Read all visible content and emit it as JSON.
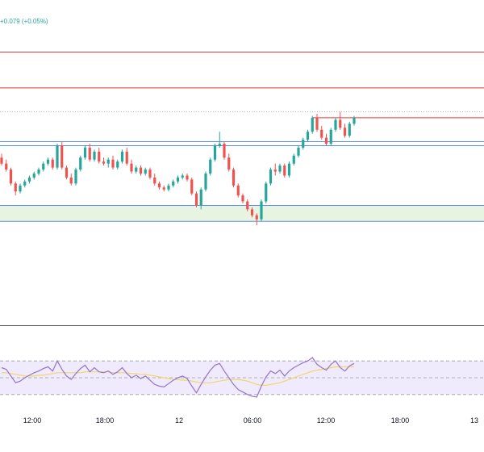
{
  "header": {
    "price_change": "+0.079 (+0.05%)"
  },
  "colors": {
    "up": "#26a69a",
    "down": "#ef5350",
    "resistance_line": "#e53935",
    "support_line": "#5b8def",
    "demand_zone_fill": "#e6f4e1",
    "rsi_line": "#9575cd",
    "rsi_ma_line": "#f5d569",
    "rsi_band_fill": "#efeafc"
  },
  "time_axis": {
    "labels": [
      "12:00",
      "18:00",
      "12",
      "06:00",
      "12:00",
      "18:00",
      "13"
    ]
  },
  "rsi_panel": {
    "upper_level": 70,
    "lower_level": 30
  },
  "chart_data": {
    "type": "candlestick",
    "title": "",
    "price_change": "+0.079 (+0.05%)",
    "x_tick_labels": [
      "12:00",
      "18:00",
      "12",
      "06:00",
      "12:00",
      "18:00",
      "13"
    ],
    "horizontal_levels": [
      {
        "kind": "resistance",
        "color": "#e53935",
        "value": 171.6
      },
      {
        "kind": "resistance",
        "color": "#e53935",
        "value": 169.8
      },
      {
        "kind": "support",
        "color": "#5b8def",
        "value": 167.1
      },
      {
        "kind": "support",
        "color": "#5b8def",
        "value": 166.9
      },
      {
        "kind": "support-zone",
        "color": "#5b8def",
        "range": [
          163.1,
          163.9
        ]
      }
    ],
    "candles": [
      [
        166.3,
        166.5,
        165.9,
        166.0
      ],
      [
        166.0,
        166.2,
        165.6,
        165.7
      ],
      [
        165.7,
        165.8,
        164.9,
        165.0
      ],
      [
        165.0,
        165.1,
        164.4,
        164.6
      ],
      [
        164.6,
        165.0,
        164.5,
        164.9
      ],
      [
        164.9,
        165.2,
        164.8,
        165.1
      ],
      [
        165.1,
        165.4,
        165.0,
        165.3
      ],
      [
        165.3,
        165.6,
        165.2,
        165.5
      ],
      [
        165.5,
        165.8,
        165.4,
        165.7
      ],
      [
        165.7,
        166.1,
        165.6,
        166.0
      ],
      [
        166.0,
        166.3,
        165.9,
        166.2
      ],
      [
        166.2,
        166.3,
        165.7,
        165.8
      ],
      [
        165.8,
        167.0,
        165.7,
        166.9
      ],
      [
        166.9,
        167.1,
        165.7,
        165.8
      ],
      [
        165.8,
        165.9,
        165.2,
        165.3
      ],
      [
        165.3,
        165.5,
        164.9,
        165.0
      ],
      [
        165.0,
        165.8,
        164.9,
        165.7
      ],
      [
        165.7,
        166.4,
        165.6,
        166.3
      ],
      [
        166.3,
        166.9,
        166.2,
        166.8
      ],
      [
        166.8,
        167.0,
        166.1,
        166.2
      ],
      [
        166.2,
        166.7,
        166.1,
        166.6
      ],
      [
        166.6,
        166.8,
        166.0,
        166.1
      ],
      [
        166.1,
        166.3,
        165.9,
        166.0
      ],
      [
        166.0,
        166.3,
        165.8,
        166.2
      ],
      [
        166.2,
        166.4,
        165.7,
        165.8
      ],
      [
        165.8,
        166.2,
        165.7,
        166.1
      ],
      [
        166.1,
        166.7,
        166.0,
        166.6
      ],
      [
        166.6,
        166.8,
        165.9,
        166.0
      ],
      [
        166.0,
        166.2,
        165.5,
        165.6
      ],
      [
        165.6,
        165.9,
        165.5,
        165.8
      ],
      [
        165.8,
        165.9,
        165.4,
        165.5
      ],
      [
        165.5,
        165.8,
        165.4,
        165.7
      ],
      [
        165.7,
        165.8,
        165.2,
        165.3
      ],
      [
        165.3,
        165.5,
        164.9,
        165.0
      ],
      [
        165.0,
        165.1,
        164.7,
        164.8
      ],
      [
        164.8,
        164.9,
        164.6,
        164.7
      ],
      [
        164.7,
        165.0,
        164.6,
        164.9
      ],
      [
        164.9,
        165.2,
        164.8,
        165.1
      ],
      [
        165.1,
        165.4,
        165.0,
        165.3
      ],
      [
        165.3,
        165.5,
        165.2,
        165.4
      ],
      [
        165.4,
        165.5,
        165.1,
        165.2
      ],
      [
        165.2,
        165.3,
        164.4,
        164.5
      ],
      [
        164.5,
        164.6,
        163.8,
        163.9
      ],
      [
        163.9,
        164.8,
        163.7,
        164.7
      ],
      [
        164.7,
        165.6,
        164.6,
        165.5
      ],
      [
        165.5,
        166.3,
        165.4,
        166.2
      ],
      [
        166.2,
        167.0,
        166.1,
        166.9
      ],
      [
        166.9,
        167.6,
        166.8,
        167.0
      ],
      [
        167.0,
        167.1,
        166.2,
        166.3
      ],
      [
        166.3,
        166.5,
        165.6,
        165.7
      ],
      [
        165.7,
        165.8,
        164.8,
        164.9
      ],
      [
        164.9,
        165.0,
        164.3,
        164.4
      ],
      [
        164.4,
        164.5,
        164.0,
        164.1
      ],
      [
        164.1,
        164.2,
        163.6,
        163.7
      ],
      [
        163.7,
        163.8,
        163.3,
        163.4
      ],
      [
        163.4,
        163.5,
        162.9,
        163.2
      ],
      [
        163.2,
        164.2,
        163.1,
        164.1
      ],
      [
        164.1,
        165.1,
        164.0,
        165.0
      ],
      [
        165.0,
        165.8,
        164.9,
        165.7
      ],
      [
        165.7,
        166.0,
        165.4,
        165.6
      ],
      [
        165.6,
        166.0,
        165.5,
        165.9
      ],
      [
        165.9,
        166.0,
        165.3,
        165.4
      ],
      [
        165.4,
        166.1,
        165.3,
        166.0
      ],
      [
        166.0,
        166.5,
        165.9,
        166.4
      ],
      [
        166.4,
        166.9,
        166.3,
        166.8
      ],
      [
        166.8,
        167.3,
        166.7,
        167.2
      ],
      [
        167.2,
        167.7,
        167.1,
        167.6
      ],
      [
        167.6,
        168.4,
        167.5,
        168.3
      ],
      [
        168.3,
        168.5,
        167.6,
        167.7
      ],
      [
        167.7,
        167.9,
        167.2,
        167.3
      ],
      [
        167.3,
        167.5,
        166.9,
        167.0
      ],
      [
        167.0,
        167.8,
        166.9,
        167.7
      ],
      [
        167.7,
        168.3,
        167.6,
        168.2
      ],
      [
        168.2,
        168.6,
        167.7,
        167.8
      ],
      [
        167.8,
        168.0,
        167.3,
        167.4
      ],
      [
        167.4,
        168.1,
        167.3,
        168.0
      ],
      [
        168.0,
        168.4,
        167.9,
        168.3
      ]
    ],
    "rsi": {
      "levels": [
        70,
        30
      ],
      "rsi": [
        62,
        60,
        52,
        44,
        46,
        50,
        53,
        56,
        58,
        61,
        63,
        58,
        70,
        60,
        52,
        48,
        55,
        61,
        65,
        57,
        62,
        57,
        56,
        58,
        54,
        57,
        62,
        55,
        50,
        53,
        49,
        52,
        47,
        42,
        40,
        39,
        43,
        47,
        50,
        52,
        49,
        40,
        32,
        42,
        51,
        59,
        65,
        67,
        58,
        50,
        42,
        36,
        33,
        30,
        28,
        27,
        40,
        51,
        58,
        55,
        59,
        52,
        58,
        62,
        65,
        68,
        70,
        74,
        66,
        62,
        59,
        66,
        70,
        62,
        58,
        64,
        67
      ],
      "rsi_ma": [
        56,
        56,
        55,
        54,
        53,
        52,
        52,
        52,
        53,
        53,
        54,
        55,
        56,
        56,
        56,
        56,
        56,
        56,
        57,
        57,
        57,
        57,
        57,
        57,
        56,
        56,
        56,
        56,
        55,
        55,
        54,
        54,
        53,
        52,
        51,
        50,
        49,
        48,
        48,
        47,
        47,
        46,
        45,
        44,
        44,
        44,
        45,
        46,
        47,
        48,
        48,
        48,
        47,
        46,
        44,
        42,
        41,
        41,
        42,
        43,
        44,
        46,
        48,
        50,
        52,
        54,
        56,
        58,
        59,
        60,
        61,
        62,
        63,
        63,
        63,
        63,
        63
      ]
    }
  }
}
